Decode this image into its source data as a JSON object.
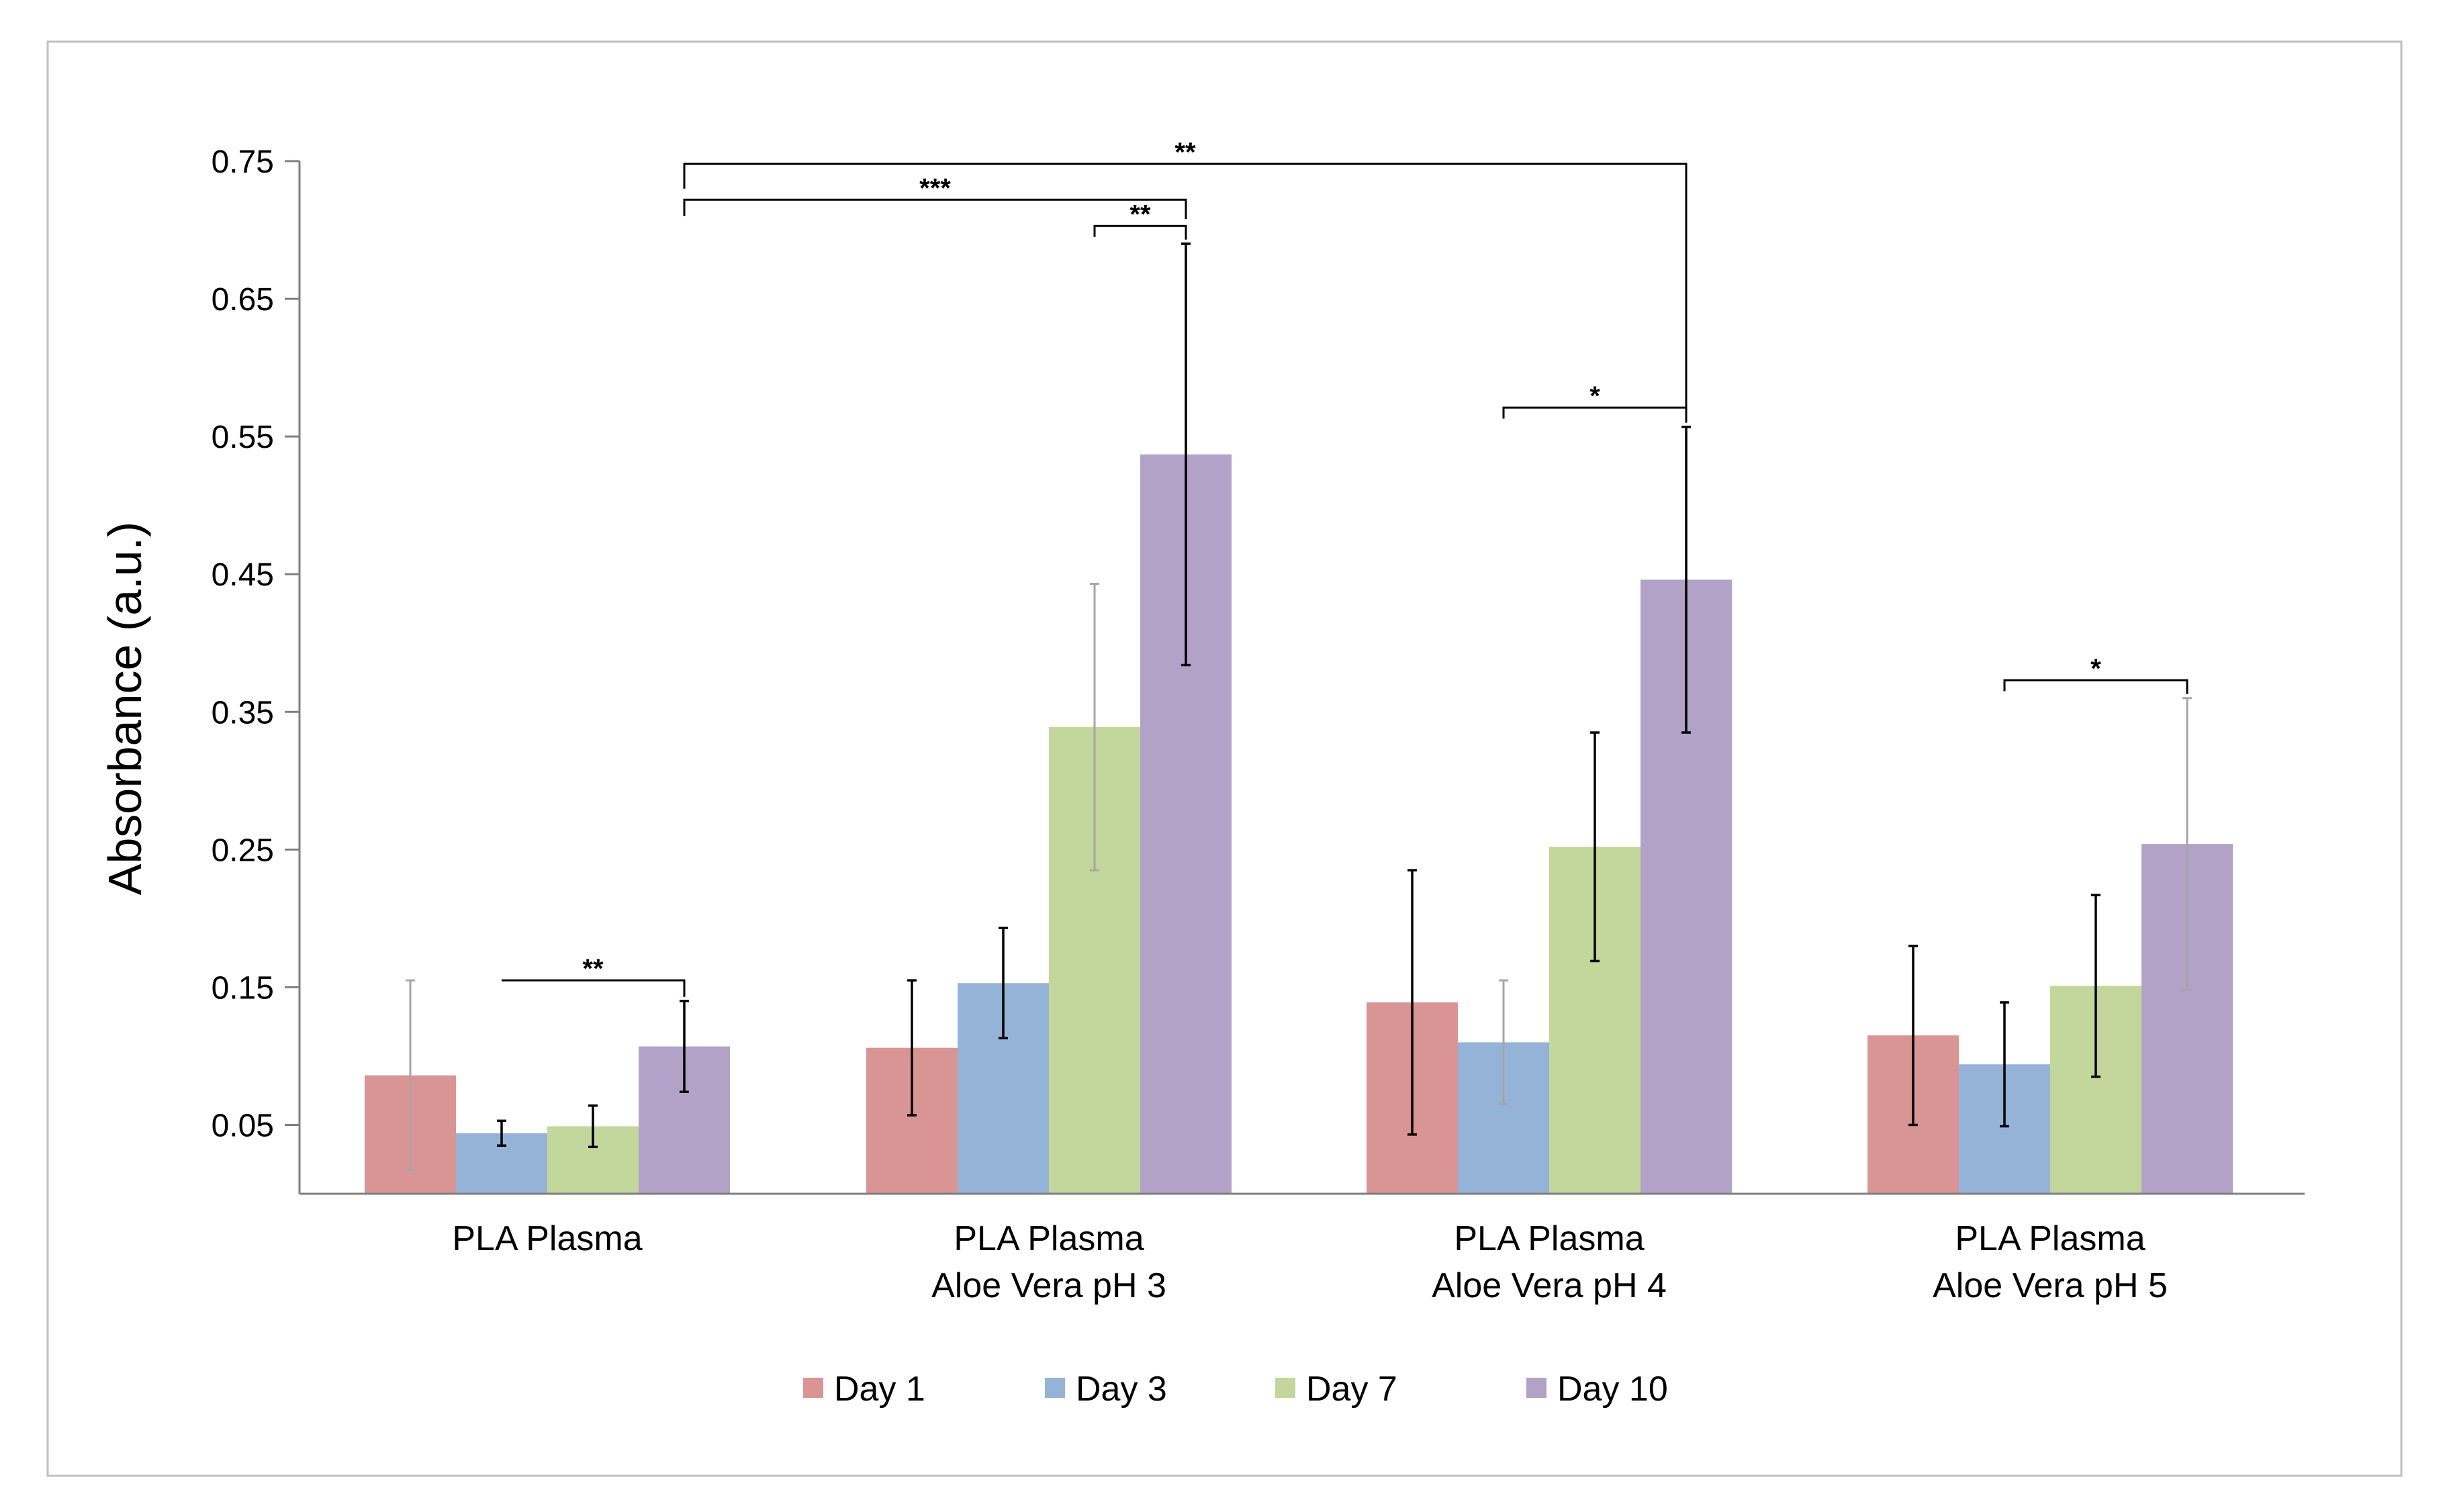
{
  "chart_data": {
    "type": "bar",
    "title": "",
    "xlabel": "",
    "ylabel": "Absorbance (a.u.)",
    "ylim": [
      0,
      0.75
    ],
    "yticks": [
      "0.05",
      "0.15",
      "0.25",
      "0.35",
      "0.45",
      "0.55",
      "0.65",
      "0.75"
    ],
    "ytick_values": [
      0.05,
      0.15,
      0.25,
      0.35,
      0.45,
      0.55,
      0.65,
      0.75
    ],
    "grid": false,
    "legend_position": "bottom",
    "categories": [
      {
        "line1": "PLA Plasma",
        "line2": ""
      },
      {
        "line1": "PLA Plasma",
        "line2": "Aloe Vera pH 3"
      },
      {
        "line1": "PLA Plasma",
        "line2": "Aloe Vera pH 4"
      },
      {
        "line1": "PLA Plasma",
        "line2": "Aloe Vera pH 5"
      }
    ],
    "series": [
      {
        "name": "Day 1",
        "color": "#d99594",
        "values": [
          0.086,
          0.106,
          0.139,
          0.115
        ],
        "errors": [
          0.069,
          0.049,
          0.096,
          0.065
        ]
      },
      {
        "name": "Day 3",
        "color": "#95b3d7",
        "values": [
          0.044,
          0.153,
          0.11,
          0.094
        ],
        "errors": [
          0.009,
          0.04,
          0.045,
          0.045
        ]
      },
      {
        "name": "Day 7",
        "color": "#c3d69b",
        "values": [
          0.049,
          0.339,
          0.252,
          0.151
        ],
        "errors": [
          0.015,
          0.104,
          0.083,
          0.066
        ]
      },
      {
        "name": "Day 10",
        "color": "#b2a2c7",
        "values": [
          0.107,
          0.537,
          0.446,
          0.254
        ],
        "errors": [
          0.033,
          0.153,
          0.111,
          0.106
        ]
      }
    ],
    "significance": [
      {
        "label": "**",
        "from": [
          0,
          1
        ],
        "to": [
          0,
          3
        ],
        "level": 0.155,
        "left_end": 0.155,
        "right_end": 0.143
      },
      {
        "label": "**",
        "from": [
          1,
          2
        ],
        "to": [
          1,
          3
        ],
        "level": 0.703,
        "left_end": 0.695,
        "right_end": 0.693
      },
      {
        "label": "***",
        "from": [
          0,
          3
        ],
        "to": [
          1,
          3
        ],
        "level": 0.722,
        "left_end": 0.71,
        "right_end": 0.708
      },
      {
        "label": "**",
        "from": [
          0,
          3
        ],
        "to": [
          2,
          3
        ],
        "level": 0.748,
        "left_end": 0.73,
        "right_end": 0.56
      },
      {
        "label": "*",
        "from": [
          2,
          1
        ],
        "to": [
          2,
          3
        ],
        "level": 0.571,
        "left_end": 0.563,
        "right_end": 0.561
      },
      {
        "label": "*",
        "from": [
          3,
          1
        ],
        "to": [
          3,
          3
        ],
        "level": 0.373,
        "left_end": 0.365,
        "right_end": 0.363
      }
    ]
  }
}
